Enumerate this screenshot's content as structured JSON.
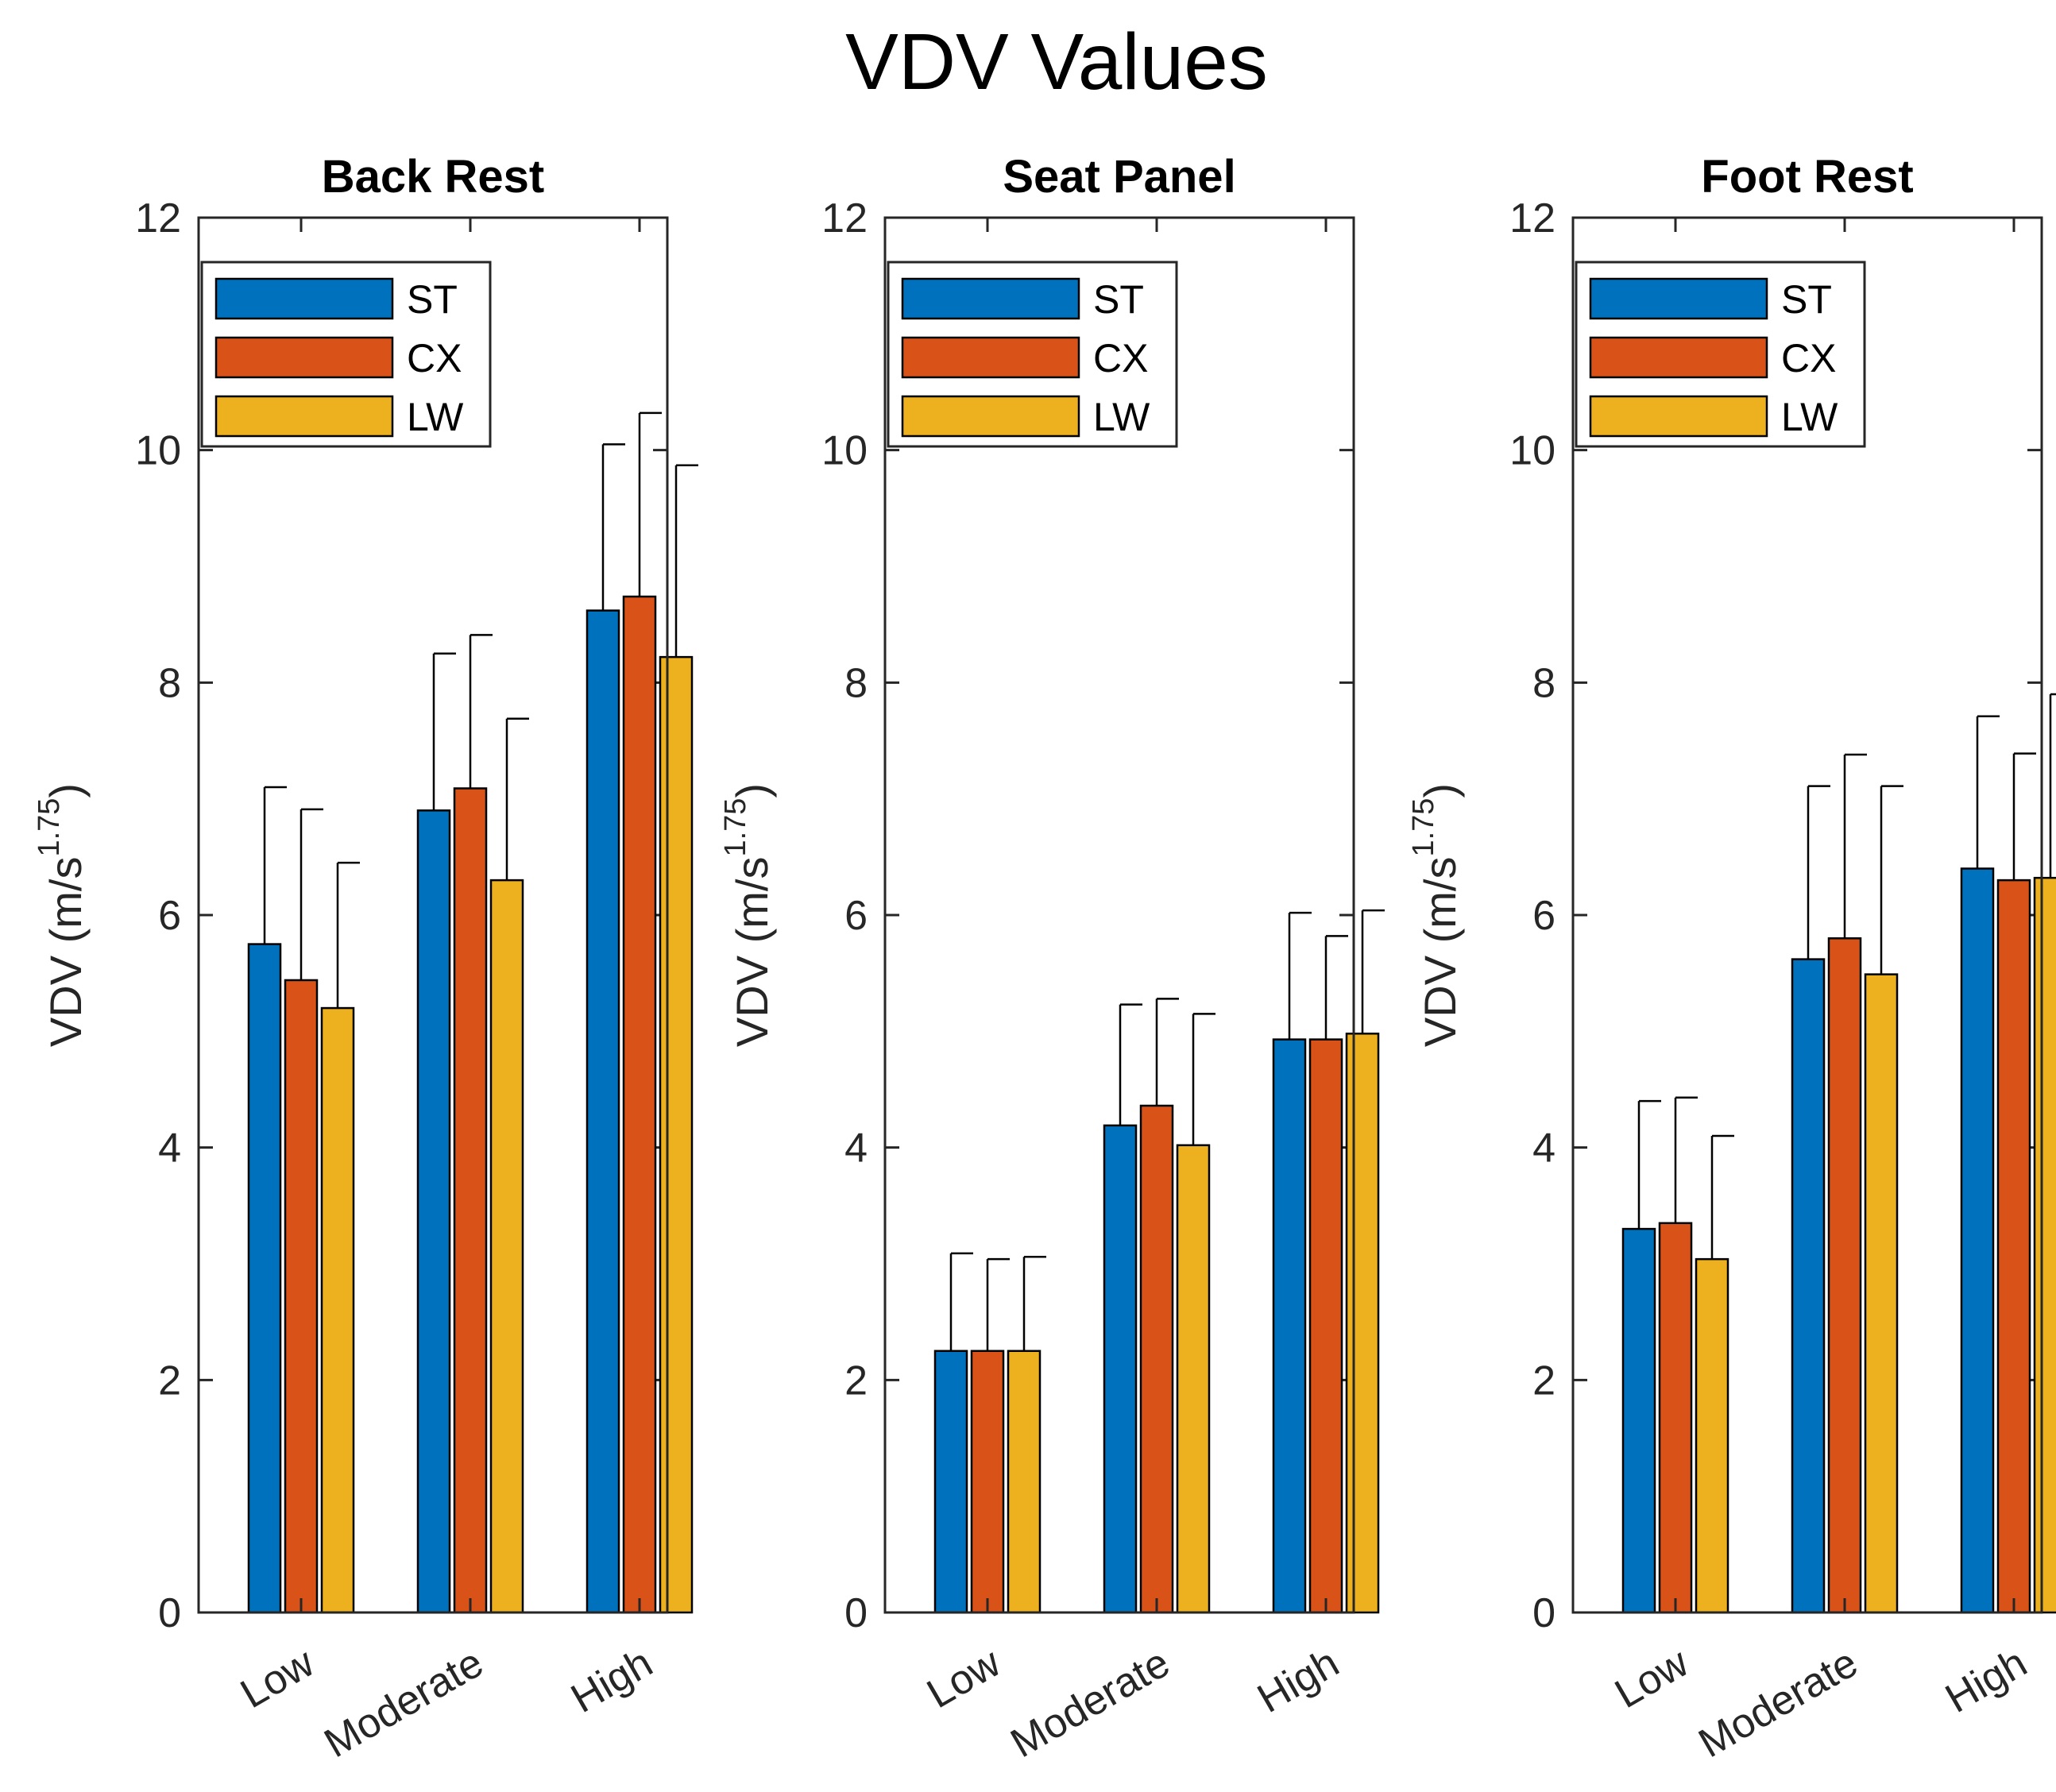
{
  "title": "VDV Values",
  "chart_data": [
    {
      "type": "bar",
      "title": "Back Rest",
      "ylabel": "VDV (m/s",
      "ylabel_exp": "1.75",
      "ylabel_close": ")",
      "ylim": [
        0,
        12
      ],
      "yticks": [
        "0",
        "2",
        "4",
        "6",
        "8",
        "10",
        "12"
      ],
      "categories": [
        "Low",
        "Moderate",
        "High"
      ],
      "legend": "top-left",
      "series": [
        {
          "name": "ST",
          "color": "#0072BD",
          "values": [
            5.75,
            6.9,
            8.62
          ],
          "errors": [
            1.35,
            1.35,
            1.43
          ]
        },
        {
          "name": "CX",
          "color": "#D95319",
          "values": [
            5.44,
            7.09,
            8.74
          ],
          "errors": [
            1.47,
            1.32,
            1.58
          ]
        },
        {
          "name": "LW",
          "color": "#EDB120",
          "values": [
            5.2,
            6.3,
            8.22
          ],
          "errors": [
            1.25,
            1.39,
            1.65
          ]
        }
      ]
    },
    {
      "type": "bar",
      "title": "Seat Panel",
      "ylabel": "VDV (m/s",
      "ylabel_exp": "1.75",
      "ylabel_close": ")",
      "ylim": [
        0,
        12
      ],
      "yticks": [
        "0",
        "2",
        "4",
        "6",
        "8",
        "10",
        "12"
      ],
      "categories": [
        "Low",
        "Moderate",
        "High"
      ],
      "legend": "top-left",
      "series": [
        {
          "name": "ST",
          "color": "#0072BD",
          "values": [
            2.25,
            4.19,
            4.93
          ],
          "errors": [
            0.84,
            1.04,
            1.09
          ]
        },
        {
          "name": "CX",
          "color": "#D95319",
          "values": [
            2.25,
            4.36,
            4.93
          ],
          "errors": [
            0.79,
            0.92,
            0.89
          ]
        },
        {
          "name": "LW",
          "color": "#EDB120",
          "values": [
            2.25,
            4.02,
            4.98
          ],
          "errors": [
            0.81,
            1.13,
            1.06
          ]
        }
      ]
    },
    {
      "type": "bar",
      "title": "Foot Rest",
      "ylabel": "VDV (m/s",
      "ylabel_exp": "1.75",
      "ylabel_close": ")",
      "ylim": [
        0,
        12
      ],
      "yticks": [
        "0",
        "2",
        "4",
        "6",
        "8",
        "10",
        "12"
      ],
      "categories": [
        "Low",
        "Moderate",
        "High"
      ],
      "legend": "top-left",
      "series": [
        {
          "name": "ST",
          "color": "#0072BD",
          "values": [
            3.3,
            5.62,
            6.4
          ],
          "errors": [
            1.1,
            1.49,
            1.31
          ]
        },
        {
          "name": "CX",
          "color": "#D95319",
          "values": [
            3.35,
            5.8,
            6.3
          ],
          "errors": [
            1.08,
            1.58,
            1.09
          ]
        },
        {
          "name": "LW",
          "color": "#EDB120",
          "values": [
            3.04,
            5.49,
            6.32
          ],
          "errors": [
            1.06,
            1.62,
            1.58
          ]
        }
      ]
    }
  ]
}
